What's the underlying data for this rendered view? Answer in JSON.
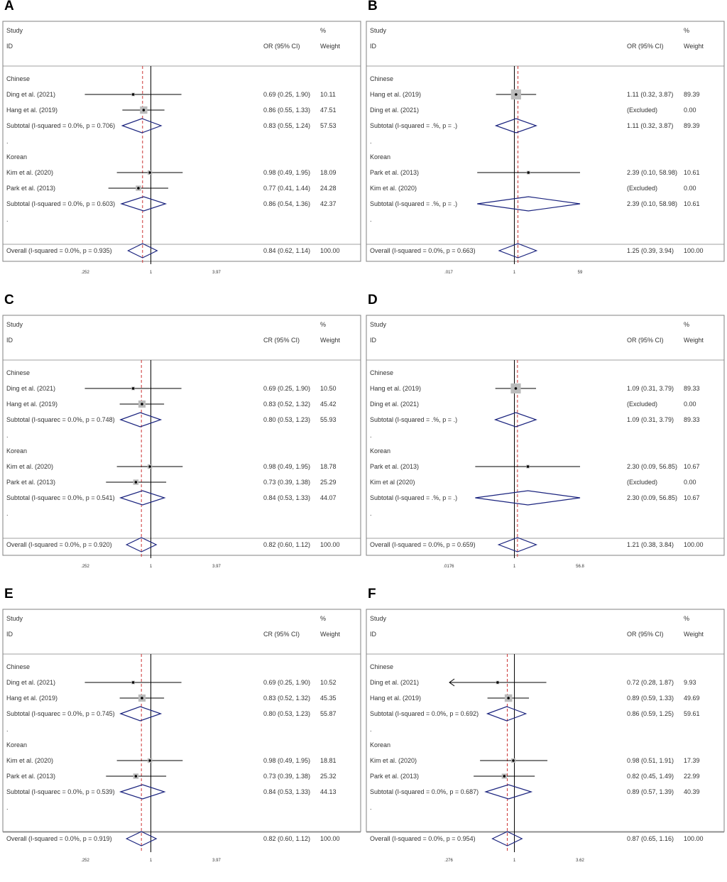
{
  "colors": {
    "ci_line": "#000000",
    "ref_line": "#cc3333",
    "diamond": "#1a237e",
    "box": "#bbbbbb",
    "frame": "#808080"
  },
  "headers": {
    "study": "Study",
    "id": "ID",
    "or": "OR (95% CI)",
    "or_alt": "CR (95% CI)",
    "pct": "%",
    "weight": "Weight"
  },
  "chart_data": [
    {
      "panel": "A",
      "type": "forest",
      "xscale": "log",
      "xlim": [
        0.252,
        3.97
      ],
      "ticks": [
        ".252",
        "1",
        "3.97"
      ],
      "ticklabels": [
        ".252",
        "1",
        "3.97"
      ],
      "ref": 0.84,
      "or_label": "OR (95% CI)",
      "rows": [
        {
          "kind": "group",
          "label": "Chinese"
        },
        {
          "kind": "study",
          "label": "Ding et al. (2021)",
          "or": 0.69,
          "lo": 0.25,
          "hi": 1.9,
          "ci": "0.69 (0.25, 1.90)",
          "weight": "10.11"
        },
        {
          "kind": "study",
          "label": "Hang et al. (2019)",
          "or": 0.86,
          "lo": 0.55,
          "hi": 1.33,
          "ci": "0.86 (0.55, 1.33)",
          "weight": "47.51"
        },
        {
          "kind": "subtotal",
          "label": "Subtotal  (I-squared = 0.0%, p = 0.706)",
          "or": 0.83,
          "lo": 0.55,
          "hi": 1.24,
          "ci": "0.83 (0.55, 1.24)",
          "weight": "57.53"
        },
        {
          "kind": "dot",
          "label": "."
        },
        {
          "kind": "group",
          "label": "Korean"
        },
        {
          "kind": "study",
          "label": "Kim et al.  (2020)",
          "or": 0.98,
          "lo": 0.49,
          "hi": 1.95,
          "ci": "0.98 (0.49, 1.95)",
          "weight": "18.09"
        },
        {
          "kind": "study",
          "label": "Park et al.  (2013)",
          "or": 0.77,
          "lo": 0.41,
          "hi": 1.44,
          "ci": "0.77 (0.41, 1.44)",
          "weight": "24.28"
        },
        {
          "kind": "subtotal",
          "label": "Subtotal  (I-squared = 0.0%, p = 0.603)",
          "or": 0.86,
          "lo": 0.54,
          "hi": 1.36,
          "ci": "0.86 (0.54, 1.36)",
          "weight": "42.37"
        },
        {
          "kind": "dot",
          "label": "."
        },
        {
          "kind": "overall",
          "label": "Overall  (I-squared = 0.0%, p = 0.935)",
          "or": 0.84,
          "lo": 0.62,
          "hi": 1.14,
          "ci": "0.84 (0.62, 1.14)",
          "weight": "100.00"
        }
      ]
    },
    {
      "panel": "B",
      "type": "forest",
      "xscale": "log",
      "xlim": [
        0.017,
        59
      ],
      "ticks": [
        ".017",
        "1",
        "59"
      ],
      "ticklabels": [
        ".017",
        "1",
        "59"
      ],
      "ref": 1.25,
      "or_label": "OR (95% CI)",
      "rows": [
        {
          "kind": "group",
          "label": "Chinese"
        },
        {
          "kind": "study",
          "label": "Hang et al. (2019)",
          "or": 1.11,
          "lo": 0.32,
          "hi": 3.87,
          "ci": "1.11 (0.32, 3.87)",
          "weight": "89.39"
        },
        {
          "kind": "study",
          "label": "Ding et al. (2021)",
          "or": null,
          "ci": "(Excluded)",
          "weight": "0.00"
        },
        {
          "kind": "subtotal",
          "label": "Subtotal  (I-squared = .%, p = .)",
          "or": 1.11,
          "lo": 0.32,
          "hi": 3.87,
          "ci": "1.11 (0.32, 3.87)",
          "weight": "89.39"
        },
        {
          "kind": "dot",
          "label": "."
        },
        {
          "kind": "group",
          "label": "Korean"
        },
        {
          "kind": "study",
          "label": "Park et al.  (2013)",
          "or": 2.39,
          "lo": 0.1,
          "hi": 58.98,
          "ci": "2.39 (0.10, 58.98)",
          "weight": "10.61"
        },
        {
          "kind": "study",
          "label": "Kim et al.  (2020)",
          "or": null,
          "ci": "(Excluded)",
          "weight": "0.00"
        },
        {
          "kind": "subtotal",
          "label": "Subtotal  (I-squared = .%, p = .)",
          "or": 2.39,
          "lo": 0.1,
          "hi": 58.98,
          "ci": "2.39 (0.10, 58.98)",
          "weight": "10.61"
        },
        {
          "kind": "dot",
          "label": "."
        },
        {
          "kind": "overall",
          "label": "Overall  (I-squared = 0.0%, p = 0.663)",
          "or": 1.25,
          "lo": 0.39,
          "hi": 3.94,
          "ci": "1.25 (0.39, 3.94)",
          "weight": "100.00"
        }
      ]
    },
    {
      "panel": "C",
      "type": "forest",
      "xscale": "log",
      "xlim": [
        0.252,
        3.97
      ],
      "ticks": [
        ".252",
        "1",
        "3.97"
      ],
      "ticklabels": [
        ".252",
        "1",
        "3.97"
      ],
      "ref": 0.82,
      "or_label": "CR (95% CI)",
      "rows": [
        {
          "kind": "group",
          "label": "Chinese"
        },
        {
          "kind": "study",
          "label": "Ding et al. (2021)",
          "or": 0.69,
          "lo": 0.25,
          "hi": 1.9,
          "ci": "0.69 (0.25, 1.90)",
          "weight": "10.50"
        },
        {
          "kind": "study",
          "label": "Hang et al. (2019)",
          "or": 0.83,
          "lo": 0.52,
          "hi": 1.32,
          "ci": "0.83 (0.52, 1.32)",
          "weight": "45.42"
        },
        {
          "kind": "subtotal",
          "label": "Subtotal  (I-squarec = 0.0%, p = 0.748)",
          "or": 0.8,
          "lo": 0.53,
          "hi": 1.23,
          "ci": "0.80 (0.53, 1.23)",
          "weight": "55.93"
        },
        {
          "kind": "dot",
          "label": "."
        },
        {
          "kind": "group",
          "label": "Korean"
        },
        {
          "kind": "study",
          "label": "Kim et al.  (2020)",
          "or": 0.98,
          "lo": 0.49,
          "hi": 1.95,
          "ci": "0.98 (0.49, 1.95)",
          "weight": "18.78"
        },
        {
          "kind": "study",
          "label": "Park et al.  (2013)",
          "or": 0.73,
          "lo": 0.39,
          "hi": 1.38,
          "ci": "0.73 (0.39, 1.38)",
          "weight": "25.29"
        },
        {
          "kind": "subtotal",
          "label": "Subtotal  (I-squarec = 0.0%, p = 0.541)",
          "or": 0.84,
          "lo": 0.53,
          "hi": 1.33,
          "ci": "0.84 (0.53, 1.33)",
          "weight": "44.07"
        },
        {
          "kind": "dot",
          "label": "."
        },
        {
          "kind": "overall",
          "label": "Overall  (I-squared = 0.0%, p = 0.920)",
          "or": 0.82,
          "lo": 0.6,
          "hi": 1.12,
          "ci": "0.82 (0.60, 1.12)",
          "weight": "100.00"
        }
      ]
    },
    {
      "panel": "D",
      "type": "forest",
      "xscale": "log",
      "xlim": [
        0.0176,
        56.8
      ],
      "ticks": [
        ".0176",
        "1",
        "56.8"
      ],
      "ticklabels": [
        ".0176",
        "1",
        "56.8"
      ],
      "ref": 1.21,
      "or_label": "OR (95% CI)",
      "rows": [
        {
          "kind": "group",
          "label": "Chinese"
        },
        {
          "kind": "study",
          "label": "Hang et al. (2019)",
          "or": 1.09,
          "lo": 0.31,
          "hi": 3.79,
          "ci": "1.09 (0.31, 3.79)",
          "weight": "89.33"
        },
        {
          "kind": "study",
          "label": "Ding et al. (2021)",
          "or": null,
          "ci": "(Excluded)",
          "weight": "0.00"
        },
        {
          "kind": "subtotal",
          "label": "Subtotal  (I-squared = .%, p = .)",
          "or": 1.09,
          "lo": 0.31,
          "hi": 3.79,
          "ci": "1.09 (0.31, 3.79)",
          "weight": "89.33"
        },
        {
          "kind": "dot",
          "label": "."
        },
        {
          "kind": "group",
          "label": "Korean"
        },
        {
          "kind": "study",
          "label": "Park et al.  (2013)",
          "or": 2.3,
          "lo": 0.09,
          "hi": 56.85,
          "ci": "2.30 (0.09, 56.85)",
          "weight": "10.67"
        },
        {
          "kind": "study",
          "label": "Kim et al  (2020)",
          "or": null,
          "ci": "(Excluded)",
          "weight": "0.00"
        },
        {
          "kind": "subtotal",
          "label": "Subtotal  (I-squared = .%, p = .)",
          "or": 2.3,
          "lo": 0.09,
          "hi": 56.85,
          "ci": "2.30 (0.09, 56.85)",
          "weight": "10.67"
        },
        {
          "kind": "dot",
          "label": "."
        },
        {
          "kind": "overall",
          "label": "Overall  (I-squared = 0.0%, p = 0.659)",
          "or": 1.21,
          "lo": 0.38,
          "hi": 3.84,
          "ci": "1.21 (0.38, 3.84)",
          "weight": "100.00"
        }
      ]
    },
    {
      "panel": "E",
      "type": "forest",
      "xscale": "log",
      "xlim": [
        0.252,
        3.97
      ],
      "ticks": [
        ".252",
        "1",
        "3.97"
      ],
      "ticklabels": [
        ".252",
        "1",
        "3.97"
      ],
      "ref": 0.82,
      "or_label": "CR (95% CI)",
      "rows": [
        {
          "kind": "group",
          "label": "Chinese"
        },
        {
          "kind": "study",
          "label": "Ding et al. (2021)",
          "or": 0.69,
          "lo": 0.25,
          "hi": 1.9,
          "ci": "0.69 (0.25, 1.90)",
          "weight": "10.52"
        },
        {
          "kind": "study",
          "label": "Hang et al. (2019)",
          "or": 0.83,
          "lo": 0.52,
          "hi": 1.32,
          "ci": "0.83 (0.52, 1.32)",
          "weight": "45.35"
        },
        {
          "kind": "subtotal",
          "label": "Subtotal  (I-squarec = 0.0%, p = 0.745)",
          "or": 0.8,
          "lo": 0.53,
          "hi": 1.23,
          "ci": "0.80 (0.53, 1.23)",
          "weight": "55.87"
        },
        {
          "kind": "dot",
          "label": "."
        },
        {
          "kind": "group",
          "label": "Korean"
        },
        {
          "kind": "study",
          "label": "Kim et al.  (2020)",
          "or": 0.98,
          "lo": 0.49,
          "hi": 1.95,
          "ci": "0.98 (0.49, 1.95)",
          "weight": "18.81"
        },
        {
          "kind": "study",
          "label": "Park et al.  (2013)",
          "or": 0.73,
          "lo": 0.39,
          "hi": 1.38,
          "ci": "0.73 (0.39, 1.38)",
          "weight": "25.32"
        },
        {
          "kind": "subtotal",
          "label": "Subtotal  (I-squarec = 0.0%, p = 0.539)",
          "or": 0.84,
          "lo": 0.53,
          "hi": 1.33,
          "ci": "0.84 (0.53, 1.33)",
          "weight": "44.13"
        },
        {
          "kind": "dot",
          "label": "."
        },
        {
          "kind": "overall",
          "label": "Overall  (I-squared = 0.0%, p = 0.919)",
          "or": 0.82,
          "lo": 0.6,
          "hi": 1.12,
          "ci": "0.82 (0.60, 1.12)",
          "weight": "100.00"
        }
      ]
    },
    {
      "panel": "F",
      "type": "forest",
      "xscale": "log",
      "xlim": [
        0.276,
        3.62
      ],
      "ticks": [
        ".276",
        "1",
        "3.62"
      ],
      "ticklabels": [
        ".276",
        "1",
        "3.62"
      ],
      "ref": 0.87,
      "or_label": "OR (95% CI)",
      "rows": [
        {
          "kind": "group",
          "label": "Chinese"
        },
        {
          "kind": "study",
          "label": "Ding et al. (2021)",
          "or": 0.72,
          "lo": 0.28,
          "hi": 1.87,
          "ci": "0.72 (0.28, 1.87)",
          "weight": "9.93",
          "arrow_left": true
        },
        {
          "kind": "study",
          "label": "Hang et al. (2019)",
          "or": 0.89,
          "lo": 0.59,
          "hi": 1.33,
          "ci": "0.89 (0.59, 1.33)",
          "weight": "49.69"
        },
        {
          "kind": "subtotal",
          "label": "Subtotal  (I-squared = 0.0%, p = 0.692)",
          "or": 0.86,
          "lo": 0.59,
          "hi": 1.25,
          "ci": "0.86 (0.59, 1.25)",
          "weight": "59.61"
        },
        {
          "kind": "dot",
          "label": "."
        },
        {
          "kind": "group",
          "label": "Korean"
        },
        {
          "kind": "study",
          "label": "Kim et al.  (2020)",
          "or": 0.98,
          "lo": 0.51,
          "hi": 1.91,
          "ci": "0.98 (0.51, 1.91)",
          "weight": "17.39"
        },
        {
          "kind": "study",
          "label": "Park et al.  (2013)",
          "or": 0.82,
          "lo": 0.45,
          "hi": 1.49,
          "ci": "0.82 (0.45, 1.49)",
          "weight": "22.99"
        },
        {
          "kind": "subtotal",
          "label": "Subtotal  (I-squared = 0.0%, p = 0.687)",
          "or": 0.89,
          "lo": 0.57,
          "hi": 1.39,
          "ci": "0.89 (0.57, 1.39)",
          "weight": "40.39"
        },
        {
          "kind": "dot",
          "label": "."
        },
        {
          "kind": "overall",
          "label": "Overall  (I-squared = 0.0%, p = 0.954)",
          "or": 0.87,
          "lo": 0.65,
          "hi": 1.16,
          "ci": "0.87 (0.65, 1.16)",
          "weight": "100.00"
        }
      ]
    }
  ]
}
